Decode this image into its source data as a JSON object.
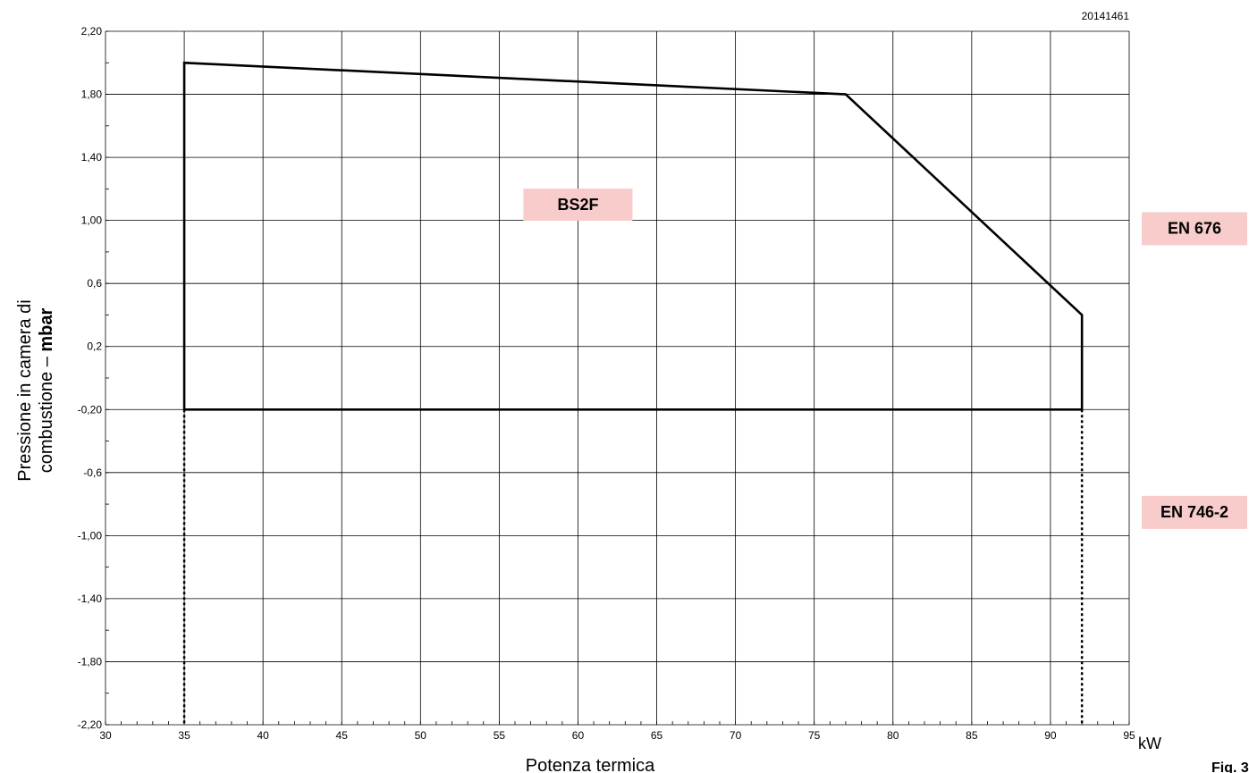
{
  "chart_data": {
    "type": "line",
    "code": "20141461",
    "figure_label": "Fig. 3",
    "xlabel": "Potenza termica",
    "x_unit": "kW",
    "ylabel_plain": "Pressione in camera di",
    "ylabel_line2": "combustione – ",
    "ylabel_unit": "mbar",
    "xlim": [
      30,
      95
    ],
    "ylim": [
      -2.2,
      2.2
    ],
    "x_ticks": [
      30,
      35,
      40,
      45,
      50,
      55,
      60,
      65,
      70,
      75,
      80,
      85,
      90,
      95
    ],
    "x_tick_labels": [
      "30",
      "35",
      "40",
      "45",
      "50",
      "55",
      "60",
      "65",
      "70",
      "75",
      "80",
      "85",
      "90",
      "95"
    ],
    "y_ticks": [
      2.2,
      1.8,
      1.4,
      1.0,
      0.6,
      0.2,
      -0.2,
      -0.6,
      -1.0,
      -1.4,
      -1.8,
      -2.2
    ],
    "y_tick_labels": [
      "2,20",
      "1,80",
      "1,40",
      "1,00",
      "0,6",
      "0,2",
      "-0,20",
      "-0,6",
      "-1,00",
      "-1,40",
      "-1,80",
      "-2,20"
    ],
    "grid": true,
    "series": [
      {
        "values_x": [
          35,
          35,
          77,
          92,
          92,
          35
        ],
        "values_y": [
          -0.2,
          2.0,
          1.8,
          0.4,
          -0.2,
          -0.2
        ],
        "style": "solid",
        "color": "#000000"
      }
    ],
    "dotted_lines": [
      {
        "x": 35,
        "y_from": -0.2,
        "y_to": -2.2
      },
      {
        "x": 92,
        "y_from": -0.2,
        "y_to": -2.2
      }
    ],
    "annotations": [
      {
        "text": "BS2F",
        "x": 60,
        "y": 1.1,
        "background": "#f9cccc"
      }
    ],
    "side_labels": [
      {
        "text": "EN 676",
        "region": "above",
        "background": "#f9cccc"
      },
      {
        "text": "EN 746-2",
        "region": "below",
        "background": "#f9cccc"
      }
    ]
  }
}
